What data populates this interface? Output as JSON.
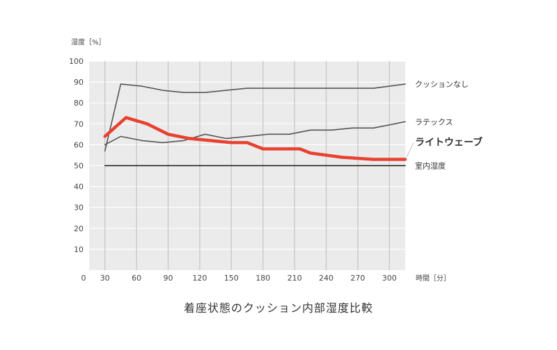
{
  "chart_data": {
    "type": "line",
    "title": "着座状態のクッション内部湿度比較",
    "ylabel": "湿度［%］",
    "xlabel": "時間［分］",
    "ylim": [
      0,
      100
    ],
    "xlim": [
      0,
      300
    ],
    "y_ticks": [
      "10",
      "20",
      "30",
      "40",
      "50",
      "60",
      "70",
      "80",
      "90",
      "100"
    ],
    "x_ticks": [
      {
        "value": 0,
        "label": "0"
      },
      {
        "value": 15,
        "label": "30"
      },
      {
        "value": 45,
        "label": "60"
      },
      {
        "value": 75,
        "label": "90"
      },
      {
        "value": 105,
        "label": "120"
      },
      {
        "value": 135,
        "label": "150"
      },
      {
        "value": 165,
        "label": "180"
      },
      {
        "value": 195,
        "label": "210"
      },
      {
        "value": 225,
        "label": "240"
      },
      {
        "value": 255,
        "label": "270"
      },
      {
        "value": 285,
        "label": "300"
      }
    ],
    "grid": true,
    "series": [
      {
        "name": "クッションなし",
        "color": "#555555",
        "x": [
          15,
          30,
          50,
          70,
          90,
          110,
          130,
          150,
          170,
          190,
          210,
          230,
          250,
          270,
          300
        ],
        "values": [
          57,
          89,
          88,
          86,
          85,
          85,
          86,
          87,
          87,
          87,
          87,
          87,
          87,
          87,
          89
        ]
      },
      {
        "name": "ラテックス",
        "color": "#555555",
        "x": [
          15,
          30,
          50,
          70,
          90,
          110,
          130,
          150,
          170,
          190,
          210,
          230,
          250,
          270,
          300
        ],
        "values": [
          60,
          64,
          62,
          61,
          62,
          65,
          63,
          64,
          65,
          65,
          67,
          67,
          68,
          68,
          71
        ]
      },
      {
        "name": "ライトウェーブ",
        "color": "#e8412f",
        "highlight": true,
        "x": [
          15,
          35,
          55,
          75,
          95,
          115,
          135,
          150,
          165,
          180,
          200,
          210,
          240,
          270,
          300
        ],
        "values": [
          64,
          73,
          70,
          65,
          63,
          62,
          61,
          61,
          58,
          58,
          58,
          56,
          54,
          53,
          53
        ]
      },
      {
        "name": "室内湿度",
        "color": "#111111",
        "x": [
          15,
          300
        ],
        "values": [
          50,
          50
        ]
      }
    ]
  }
}
